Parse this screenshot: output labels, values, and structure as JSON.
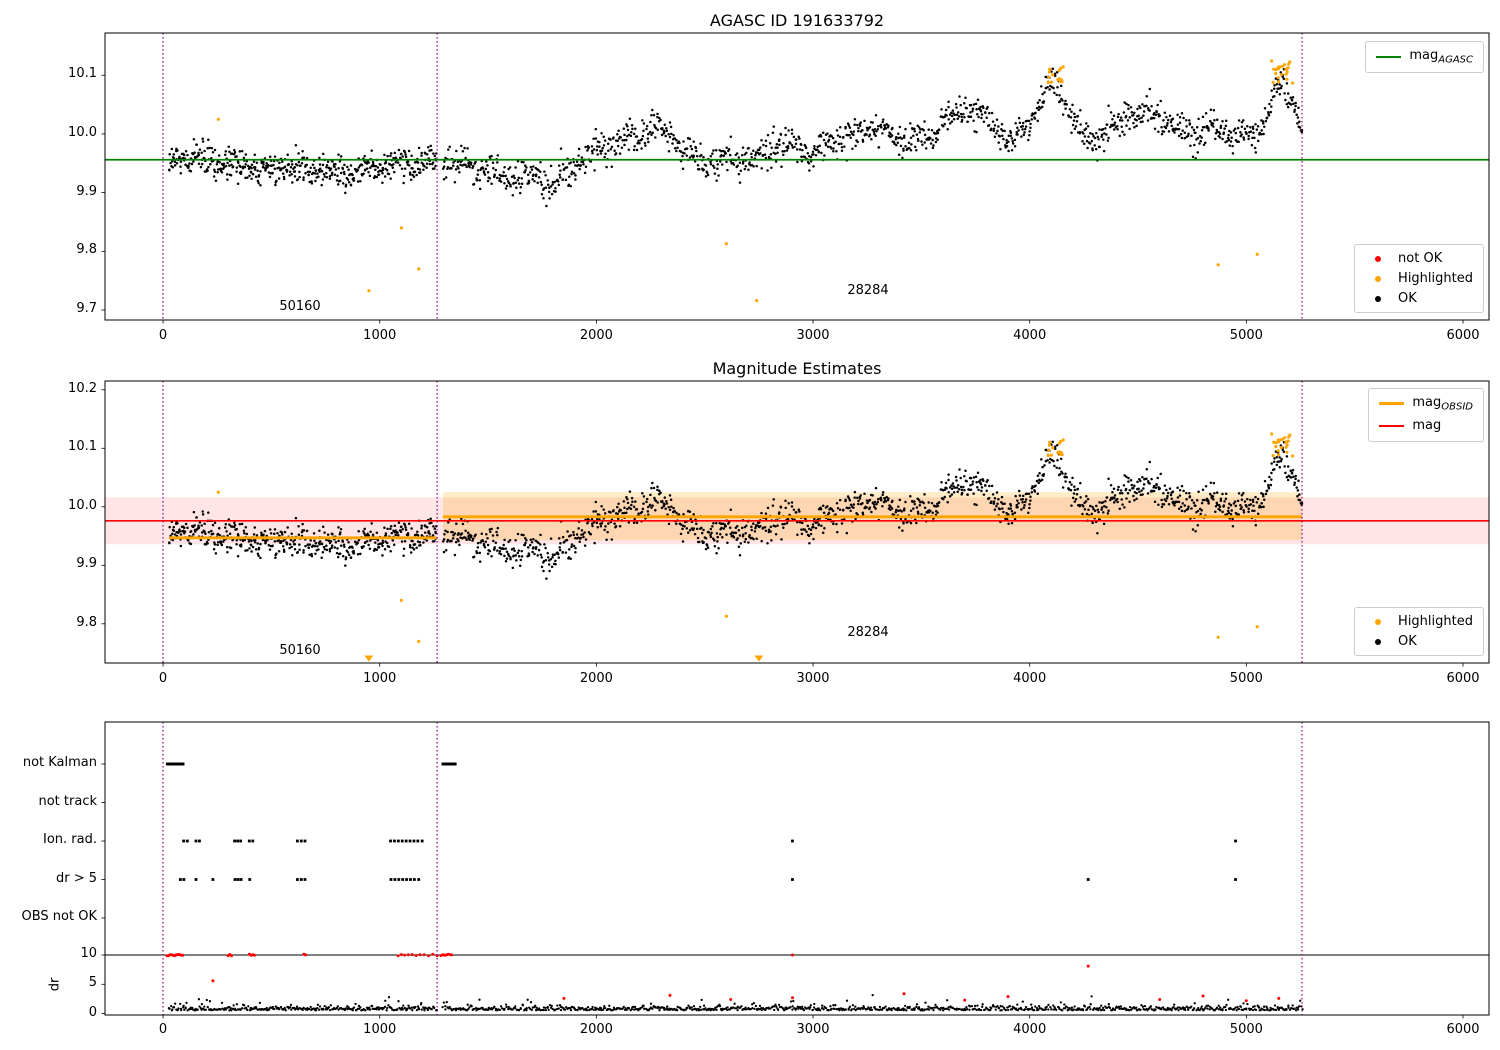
{
  "figure": {
    "background": "#ffffff"
  },
  "chart_data": [
    {
      "type": "scatter",
      "title": "AGASC ID 191633792",
      "xlim": [
        -268,
        6120
      ],
      "ylim": [
        9.683,
        10.172
      ],
      "xtick_values": [
        0,
        1000,
        2000,
        3000,
        4000,
        5000,
        6000
      ],
      "xtick_labels": [
        "0",
        "1000",
        "2000",
        "3000",
        "4000",
        "5000",
        "6000"
      ],
      "ytick_values": [
        10.1,
        10.0,
        9.9,
        9.8,
        9.7
      ],
      "ytick_labels": [
        "10.1",
        "10.0",
        "9.9",
        "9.8",
        "9.7"
      ],
      "mag_agasc_line": {
        "value": 9.956,
        "color": "#008000"
      },
      "obsid_separators": {
        "xs": [
          0,
          1265,
          5257
        ],
        "color": "#8b008b"
      },
      "legend_line": {
        "label": "mag",
        "sub": "AGASC"
      },
      "legend_markers": [
        {
          "label": "not OK",
          "color": "#ff0000"
        },
        {
          "label": "Highlighted",
          "color": "#ffa500"
        },
        {
          "label": "OK",
          "color": "#000000"
        }
      ],
      "annotations": [
        {
          "text": "50160",
          "x": 630,
          "y": 9.709
        },
        {
          "text": "28284",
          "x": 3253,
          "y": 9.734
        }
      ],
      "series": {
        "ok": {
          "color": "#000000",
          "noise": 0.0135,
          "wiggle_amp": 0.007,
          "wiggle_period": 150,
          "segments": [
            {
              "xrange": [
                28,
                1262
              ],
              "n": 520,
              "trend": [
                [
                  28,
                  9.955
                ],
                [
                  150,
                  9.962
                ],
                [
                  250,
                  9.952
                ],
                [
                  350,
                  9.945
                ],
                [
                  450,
                  9.938
                ],
                [
                  550,
                  9.944
                ],
                [
                  650,
                  9.934
                ],
                [
                  750,
                  9.94
                ],
                [
                  850,
                  9.93
                ],
                [
                  950,
                  9.94
                ],
                [
                  1050,
                  9.946
                ],
                [
                  1150,
                  9.95
                ],
                [
                  1262,
                  9.952
                ]
              ]
            },
            {
              "xrange": [
                1292,
                5258
              ],
              "n": 1350,
              "trend": [
                [
                  1292,
                  9.962
                ],
                [
                  1400,
                  9.948
                ],
                [
                  1500,
                  9.938
                ],
                [
                  1600,
                  9.922
                ],
                [
                  1700,
                  9.928
                ],
                [
                  1800,
                  9.912
                ],
                [
                  1900,
                  9.948
                ],
                [
                  2000,
                  9.968
                ],
                [
                  2100,
                  9.984
                ],
                [
                  2200,
                  10.0
                ],
                [
                  2300,
                  10.008
                ],
                [
                  2400,
                  9.972
                ],
                [
                  2500,
                  9.952
                ],
                [
                  2600,
                  9.958
                ],
                [
                  2700,
                  9.952
                ],
                [
                  2800,
                  9.972
                ],
                [
                  2900,
                  9.984
                ],
                [
                  3000,
                  9.968
                ],
                [
                  3100,
                  9.984
                ],
                [
                  3200,
                  10.0
                ],
                [
                  3300,
                  10.008
                ],
                [
                  3400,
                  9.992
                ],
                [
                  3500,
                  9.988
                ],
                [
                  3600,
                  10.018
                ],
                [
                  3700,
                  10.045
                ],
                [
                  3800,
                  10.028
                ],
                [
                  3900,
                  9.992
                ],
                [
                  4000,
                  10.018
                ],
                [
                  4080,
                  10.075
                ],
                [
                  4120,
                  10.088
                ],
                [
                  4170,
                  10.045
                ],
                [
                  4250,
                  9.988
                ],
                [
                  4350,
                  10.0
                ],
                [
                  4450,
                  10.028
                ],
                [
                  4550,
                  10.038
                ],
                [
                  4650,
                  10.018
                ],
                [
                  4750,
                  9.998
                ],
                [
                  4850,
                  10.018
                ],
                [
                  4950,
                  9.992
                ],
                [
                  5050,
                  9.998
                ],
                [
                  5120,
                  10.055
                ],
                [
                  5170,
                  10.088
                ],
                [
                  5220,
                  10.048
                ],
                [
                  5258,
                  10.005
                ]
              ]
            }
          ]
        },
        "highlighted": {
          "color": "#ffa500",
          "clusters": [
            {
              "xrange": [
                4085,
                4155
              ],
              "yrange": [
                10.085,
                10.122
              ],
              "n": 14
            },
            {
              "xrange": [
                5115,
                5215
              ],
              "yrange": [
                10.085,
                10.128
              ],
              "n": 22
            }
          ],
          "points": [
            [
              255,
              10.025
            ],
            [
              950,
              9.733
            ],
            [
              1100,
              9.84
            ],
            [
              1180,
              9.77
            ],
            [
              2600,
              9.813
            ],
            [
              2740,
              9.716
            ],
            [
              4870,
              9.777
            ],
            [
              5050,
              9.795
            ]
          ]
        },
        "not_ok": {
          "color": "#ff0000",
          "points": []
        }
      }
    },
    {
      "type": "scatter",
      "title": "Magnitude Estimates",
      "xlim": [
        -268,
        6120
      ],
      "ylim": [
        9.733,
        10.215
      ],
      "xtick_labels": [
        "0",
        "1000",
        "2000",
        "3000",
        "4000",
        "5000",
        "6000"
      ],
      "ytick_values": [
        10.2,
        10.1,
        10.0,
        9.9,
        9.8
      ],
      "ytick_labels": [
        "10.2",
        "10.1",
        "10.0",
        "9.9",
        "9.8"
      ],
      "series_ref": 0,
      "mag_line": {
        "value": 9.976,
        "color": "#ff0000",
        "band": [
          9.936,
          10.016
        ],
        "band_color": "rgba(255,0,0,0.10)"
      },
      "obsid_lines": {
        "color": "#ffa500",
        "segments": [
          {
            "xrange": [
              28,
              1262
            ],
            "value": 9.947
          },
          {
            "xrange": [
              1292,
              5257
            ],
            "value": 9.983
          }
        ],
        "band": {
          "xrange": [
            1292,
            5257
          ],
          "yrange": [
            9.943,
            10.025
          ],
          "color": "rgba(255,166,0,0.22)"
        }
      },
      "clipped_markers": {
        "xs": [
          950,
          2750
        ],
        "color": "#ffa500"
      },
      "obsid_separators": {
        "xs": [
          0,
          1265,
          5257
        ],
        "color": "#8b008b"
      },
      "legend_lines": [
        {
          "label": "mag",
          "sub": "OBSID",
          "color": "#ffa500"
        },
        {
          "label": "mag",
          "sub": "",
          "color": "#ff0000"
        }
      ],
      "legend_markers": [
        {
          "label": "Highlighted",
          "color": "#ffa500"
        },
        {
          "label": "OK",
          "color": "#000000"
        }
      ],
      "annotations": [
        {
          "text": "50160",
          "x": 630,
          "y": 9.757
        },
        {
          "text": "28284",
          "x": 3253,
          "y": 9.785
        }
      ]
    },
    {
      "type": "scatter",
      "categories": [
        "not Kalman",
        "not track",
        "Ion. rad.",
        "dr > 5",
        "OBS not OK"
      ],
      "dr_tick_labels": [
        "10",
        "5",
        "0"
      ],
      "ylabel": "dr",
      "dr_clip_value": 10,
      "xtick_labels": [
        "0",
        "1000",
        "2000",
        "3000",
        "4000",
        "5000",
        "6000"
      ],
      "flags": {
        "not Kalman": {
          "color": "#000000",
          "runs": [
            [
              20,
              95
            ],
            [
              1292,
              1350
            ]
          ],
          "xs": []
        },
        "not track": {
          "color": "#000000",
          "xs": []
        },
        "Ion. rad.": {
          "color": "#000000",
          "xs": [
            95,
            112,
            152,
            168,
            330,
            344,
            358,
            398,
            414,
            620,
            638,
            655,
            1050,
            1068,
            1086,
            1104,
            1122,
            1140,
            1158,
            1176,
            1196,
            2905,
            4950
          ]
        },
        "dr > 5": {
          "color": "#000000",
          "xs": [
            80,
            96,
            152,
            230,
            332,
            346,
            360,
            400,
            620,
            638,
            655,
            1052,
            1070,
            1088,
            1106,
            1124,
            1142,
            1160,
            1180,
            2905,
            4270,
            4950
          ]
        },
        "OBS not OK": {
          "color": "#000000",
          "xs": []
        }
      },
      "dr_series": {
        "ok": {
          "color": "#000000",
          "base": 0.55,
          "spread": 0.42,
          "n_a": 300,
          "n_b": 900,
          "xrange_a": [
            28,
            1262
          ],
          "xrange_b": [
            1292,
            5258
          ]
        },
        "flagged": {
          "color": "#ff0000",
          "points": [
            [
              230,
              5.6
            ],
            [
              1850,
              2.6
            ],
            [
              2340,
              3.1
            ],
            [
              2620,
              2.4
            ],
            [
              2905,
              2.7
            ],
            [
              3420,
              3.4
            ],
            [
              3700,
              2.3
            ],
            [
              3900,
              2.9
            ],
            [
              4270,
              8.1
            ],
            [
              4600,
              2.4
            ],
            [
              4800,
              3.0
            ],
            [
              5000,
              2.2
            ],
            [
              5150,
              2.6
            ]
          ],
          "clipped_xs": [
            18,
            25,
            32,
            39,
            46,
            53,
            60,
            67,
            74,
            82,
            90,
            300,
            308,
            316,
            398,
            406,
            414,
            422,
            650,
            658,
            1085,
            1100,
            1115,
            1132,
            1150,
            1168,
            1186,
            1205,
            1225,
            1245,
            1265,
            1283,
            1292,
            1300,
            1308,
            1316,
            1324,
            1332,
            2905
          ]
        }
      },
      "obsid_separators": {
        "xs": [
          0,
          1265,
          5257
        ],
        "color": "#8b008b"
      }
    }
  ]
}
